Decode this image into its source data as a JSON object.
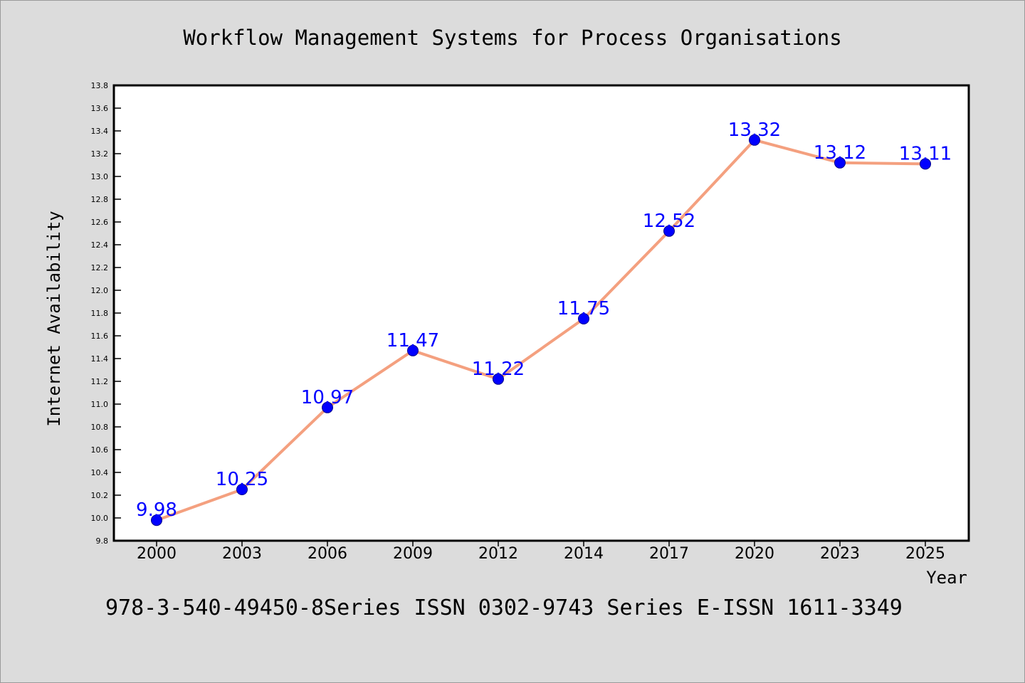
{
  "chart_data": {
    "type": "line",
    "title": "Workflow Management Systems for Process Organisations",
    "xlabel": "Year",
    "ylabel": "Internet Availability",
    "categories": [
      "2000",
      "2003",
      "2006",
      "2009",
      "2012",
      "2014",
      "2017",
      "2020",
      "2023",
      "2025"
    ],
    "values": [
      9.98,
      10.25,
      10.97,
      11.47,
      11.22,
      11.75,
      12.52,
      13.32,
      13.12,
      13.11
    ],
    "value_labels": [
      "9.98",
      "10.25",
      "10.97",
      "11.47",
      "11.22",
      "11.75",
      "12.52",
      "13.32",
      "13.12",
      "13.11"
    ],
    "ylim": [
      9.8,
      13.8
    ],
    "yticks": [
      "9.8",
      "10.0",
      "10.2",
      "10.4",
      "10.6",
      "10.8",
      "11.0",
      "11.2",
      "11.4",
      "11.6",
      "11.8",
      "12.0",
      "12.2",
      "12.4",
      "12.6",
      "12.8",
      "13.0",
      "13.2",
      "13.4",
      "13.6",
      "13.8"
    ],
    "grid": false,
    "line_color": "#f4a07f",
    "marker_color": "#0000ff",
    "label_color": "#0000ff"
  },
  "caption": "978-3-540-49450-8Series ISSN 0302-9743 Series E-ISSN 1611-3349"
}
